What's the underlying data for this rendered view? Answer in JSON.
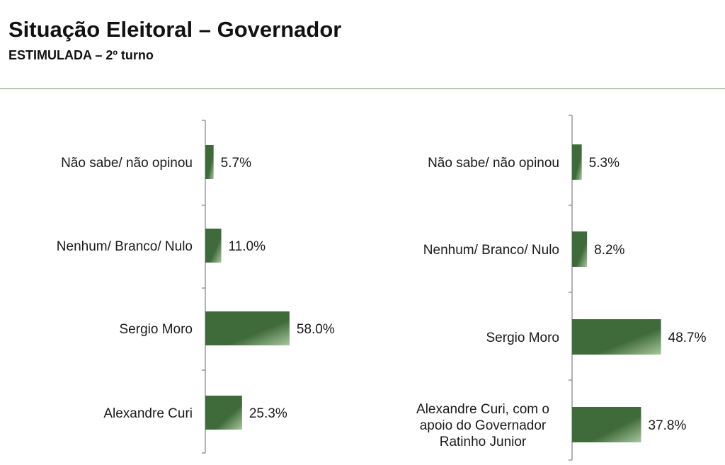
{
  "header": {
    "title": "Situação Eleitoral – Governador",
    "subtitle": "ESTIMULADA – 2º turno"
  },
  "colors": {
    "bar_dark": "#3f6b3a",
    "bar_light": "#a9c6a0",
    "axis": "#999999",
    "rule": "#7a9a6a"
  },
  "chart_data": [
    {
      "type": "bar",
      "orientation": "horizontal",
      "categories": [
        [
          "Não sabe/ não opinou"
        ],
        [
          "Nenhum/ Branco/ Nulo"
        ],
        [
          "Sergio Moro"
        ],
        [
          "Alexandre Curi"
        ]
      ],
      "values": [
        5.7,
        11.0,
        58.0,
        25.3
      ],
      "value_labels": [
        "5.7%",
        "11.0%",
        "58.0%",
        "25.3%"
      ],
      "xlim": [
        0,
        100
      ],
      "grid": false
    },
    {
      "type": "bar",
      "orientation": "horizontal",
      "categories": [
        [
          "Não sabe/ não opinou"
        ],
        [
          "Nenhum/ Branco/ Nulo"
        ],
        [
          "Sergio Moro"
        ],
        [
          "Alexandre Curi, com o",
          "apoio do Governador",
          "Ratinho Junior"
        ]
      ],
      "values": [
        5.3,
        8.2,
        48.7,
        37.8
      ],
      "value_labels": [
        "5.3%",
        "8.2%",
        "48.7%",
        "37.8%"
      ],
      "xlim": [
        0,
        100
      ],
      "grid": false
    }
  ]
}
